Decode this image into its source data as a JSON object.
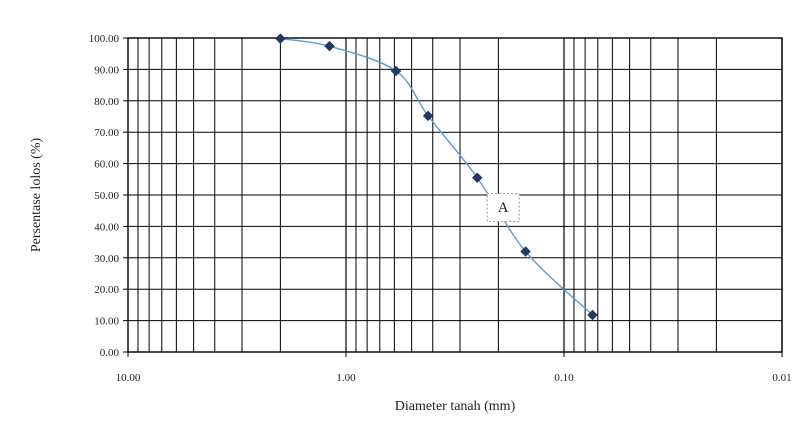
{
  "chart_data": {
    "type": "scatter",
    "xlabel": "Diameter tanah (mm)",
    "ylabel": "Persentase lolos (%)",
    "x_scale": "log",
    "x_reversed": true,
    "xlim": [
      10.0,
      0.01
    ],
    "ylim": [
      0,
      100
    ],
    "x_tick_values": [
      10,
      1,
      0.1,
      0.01
    ],
    "x_tick_labels": [
      "10.00",
      "1.00",
      "0.10",
      "0.01"
    ],
    "y_tick_values": [
      0,
      10,
      20,
      30,
      40,
      50,
      60,
      70,
      80,
      90,
      100
    ],
    "y_tick_labels": [
      "0.00",
      "10.00",
      "20.00",
      "30.00",
      "40.00",
      "50.00",
      "60.00",
      "70.00",
      "80.00",
      "90.00",
      "100.00"
    ],
    "grid": true,
    "series": [
      {
        "x": [
          2.0,
          1.19,
          0.59,
          0.42,
          0.25,
          0.15,
          0.074
        ],
        "y": [
          99.8,
          97.4,
          89.5,
          75.2,
          55.5,
          32.0,
          11.8
        ],
        "line_color": "#5b9bd5",
        "marker_color": "#1f3b63"
      }
    ],
    "annotations": [
      {
        "text": "A",
        "x": 0.19,
        "y": 46
      }
    ]
  }
}
